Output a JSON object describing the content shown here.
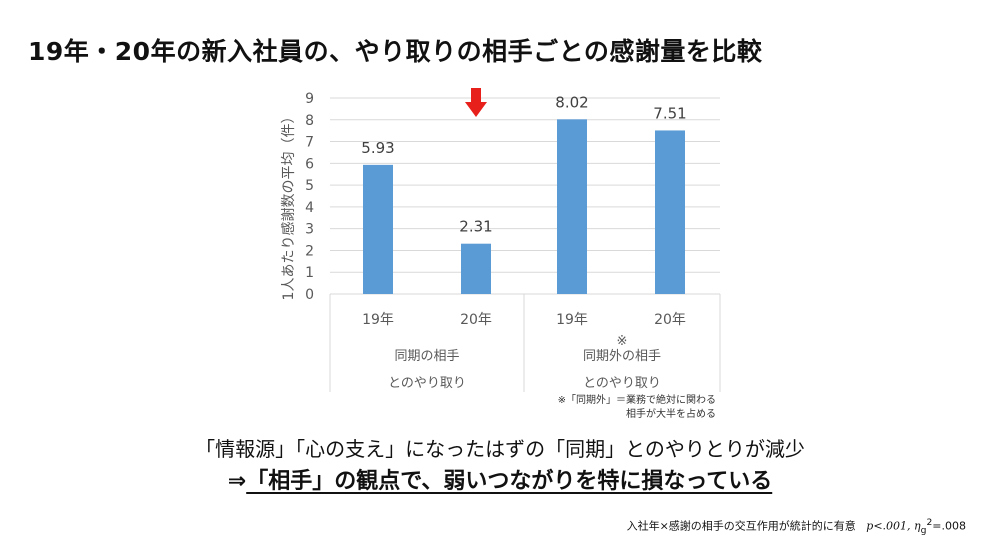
{
  "title": "19年・20年の新入社員の、やり取りの相手ごとの感謝量を比較",
  "chart_data": {
    "type": "bar",
    "ylabel": "1人あたり感謝数の平均（件）",
    "ylim": [
      0,
      9
    ],
    "yticks": [
      0,
      1,
      2,
      3,
      4,
      5,
      6,
      7,
      8,
      9
    ],
    "grid": true,
    "bar_color": "#5B9BD5",
    "categories": [
      "19年",
      "20年",
      "19年",
      "20年"
    ],
    "values": [
      5.93,
      2.31,
      8.02,
      7.51
    ],
    "data_labels": [
      "5.93",
      "2.31",
      "8.02",
      "7.51"
    ],
    "groups": [
      {
        "label": "同期の相手",
        "label2": "とのやり取り",
        "marker": ""
      },
      {
        "label": "同期外の相手",
        "label2": "とのやり取り",
        "marker": "※"
      }
    ],
    "footnote_line1": "※「同期外」＝業務で絶対に関わる",
    "footnote_line2": "相手が大半を占める",
    "highlight_arrow_color": "#E8201B"
  },
  "message": {
    "line1": "「情報源」「心の支え」になったはずの「同期」とのやりとりが減少",
    "line2_prefix": "⇒",
    "line2_main": "「相手」の観点で、弱いつながりを特に損なっている"
  },
  "stat_note": {
    "text": "入社年×感謝の相手の交互作用が統計的に有意",
    "p": "p<.001,",
    "eta": "η",
    "eta_sub": "g",
    "eta_sup": "2",
    "eta_val": "=.008"
  }
}
